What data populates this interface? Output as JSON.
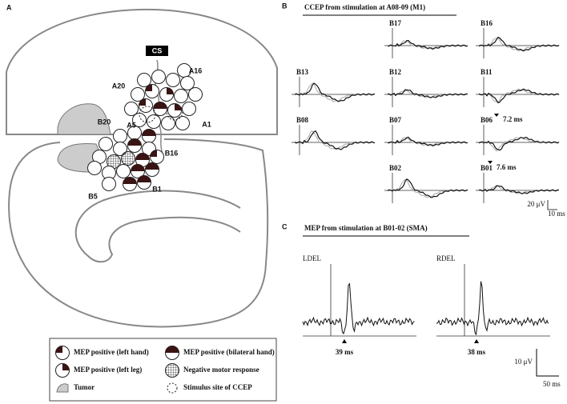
{
  "panels": {
    "a": {
      "label": "A",
      "labels": [
        "CS",
        "A16",
        "A20",
        "A1",
        "B20",
        "A5",
        "B16",
        "B5",
        "B1"
      ]
    },
    "b": {
      "label": "B",
      "title": "CCEP from stimulation at A08-09 (M1)",
      "traces": [
        "B17",
        "B16",
        "B13",
        "B12",
        "B11",
        "B08",
        "B07",
        "B06",
        "B02",
        "B01"
      ],
      "annotations": [
        "7.2 ms",
        "7.6 ms"
      ],
      "scale_y": "20 μV",
      "scale_x": "10 ms"
    },
    "c": {
      "label": "C",
      "title": "MEP from stimulation at B01-02 (SMA)",
      "traces": [
        {
          "name": "LDEL",
          "latency": "39 ms"
        },
        {
          "name": "RDEL",
          "latency": "38 ms"
        }
      ],
      "scale_y": "10 μV",
      "scale_x": "50 ms"
    }
  },
  "legend": [
    "MEP positive (left hand)",
    "MEP positive (bilateral hand)",
    "MEP positive (left leg)",
    "Negative motor response",
    "Tumor",
    "Stimulus site of CCEP"
  ]
}
